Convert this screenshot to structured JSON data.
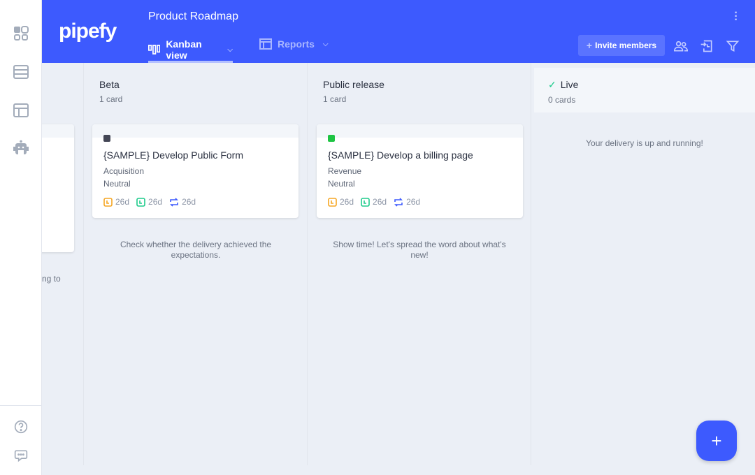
{
  "header": {
    "logo": "pipefy",
    "title": "Product Roadmap",
    "tabs": [
      {
        "label": "Kanban view",
        "icon": "kanban-icon"
      },
      {
        "label": "Reports",
        "icon": "reports-icon"
      }
    ],
    "invite_label": "Invite members"
  },
  "columns": [
    {
      "hint_partial": "ng to"
    },
    {
      "title": "Beta",
      "count": "1 card",
      "hint": "Check whether the delivery achieved the expectations.",
      "cards": [
        {
          "title": "{SAMPLE} Develop Public Form",
          "line1": "Acquisition",
          "line2": "Neutral",
          "label_color": "#434655",
          "times": [
            "26d",
            "26d",
            "26d"
          ]
        }
      ]
    },
    {
      "title": "Public release",
      "count": "1 card",
      "hint": "Show time! Let's spread the word about what's new!",
      "cards": [
        {
          "title": "{SAMPLE} Develop a billing page",
          "line1": "Revenue",
          "line2": "Neutral",
          "label_color": "#1ec443",
          "times": [
            "26d",
            "26d",
            "26d"
          ]
        }
      ]
    },
    {
      "title": "Live",
      "count": "0 cards",
      "hint": "Your delivery is up and running!"
    }
  ],
  "colors": {
    "brand": "#3d5afe",
    "time_orange": "#f5a623",
    "time_green": "#1ecb8c",
    "time_blue": "#3d5afe"
  },
  "fab": "+"
}
